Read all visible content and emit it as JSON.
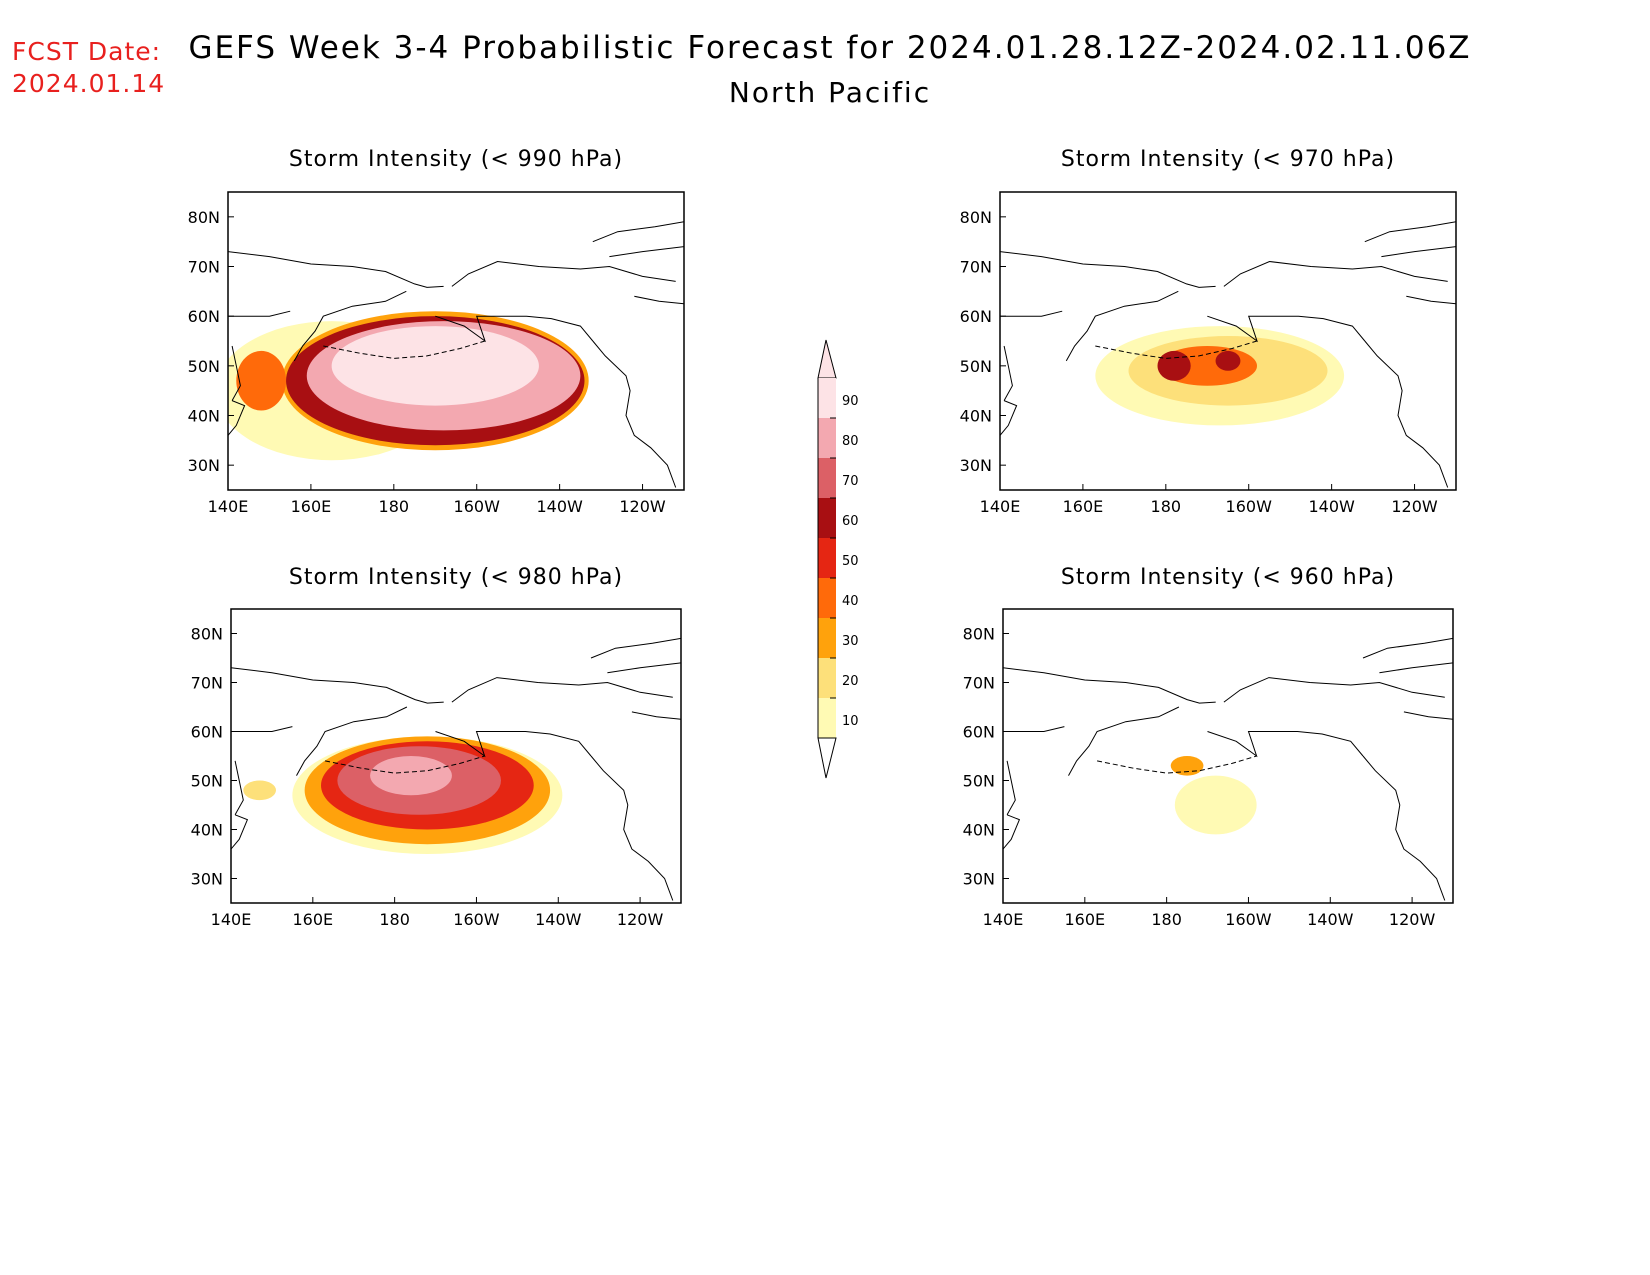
{
  "header": {
    "fcst_label": "FCST Date:",
    "fcst_date": "2024.01.14",
    "title": "GEFS Week 3-4 Probabilistic Forecast for 2024.01.28.12Z-2024.02.11.06Z",
    "subtitle": "North Pacific"
  },
  "axes": {
    "x_ticks": [
      "140E",
      "160E",
      "180",
      "160W",
      "140W",
      "120W"
    ],
    "y_ticks": [
      "80N",
      "70N",
      "60N",
      "50N",
      "40N",
      "30N"
    ],
    "lon_range_deg_east": [
      140,
      250
    ],
    "lat_range_deg_north": [
      25,
      85
    ]
  },
  "colorbar": {
    "labels": [
      "90",
      "80",
      "70",
      "60",
      "50",
      "40",
      "30",
      "20",
      "10"
    ],
    "colors": [
      "#fde3e6",
      "#f3a8b0",
      "#dc6066",
      "#a80f12",
      "#e52613",
      "#ff6a0a",
      "#ffa20c",
      "#fde07a",
      "#fffab4"
    ]
  },
  "panels": [
    {
      "id": "p990",
      "title": "Storm Intensity (< 990 hPa)"
    },
    {
      "id": "p970",
      "title": "Storm Intensity (< 970 hPa)"
    },
    {
      "id": "p980",
      "title": "Storm Intensity (< 980 hPa)"
    },
    {
      "id": "p960",
      "title": "Storm Intensity (< 960 hPa)"
    }
  ],
  "map_data": {
    "p990": [
      {
        "lon": 165,
        "lat": 45,
        "rx": 28,
        "ry": 14,
        "level": 10
      },
      {
        "lon": 190,
        "lat": 47,
        "rx": 37,
        "ry": 14,
        "level": 30
      },
      {
        "lon": 190,
        "lat": 47,
        "rx": 36,
        "ry": 13,
        "level": 60
      },
      {
        "lon": 192,
        "lat": 48,
        "rx": 33,
        "ry": 11,
        "level": 80
      },
      {
        "lon": 190,
        "lat": 50,
        "rx": 25,
        "ry": 8,
        "level": 90
      },
      {
        "lon": 148,
        "lat": 47,
        "rx": 6,
        "ry": 6,
        "level": 40
      }
    ],
    "p980": [
      {
        "lon": 188,
        "lat": 47,
        "rx": 33,
        "ry": 12,
        "level": 10
      },
      {
        "lon": 188,
        "lat": 48,
        "rx": 30,
        "ry": 11,
        "level": 30
      },
      {
        "lon": 188,
        "lat": 49,
        "rx": 26,
        "ry": 9,
        "level": 50
      },
      {
        "lon": 186,
        "lat": 50,
        "rx": 20,
        "ry": 7,
        "level": 70
      },
      {
        "lon": 184,
        "lat": 51,
        "rx": 10,
        "ry": 4,
        "level": 80
      },
      {
        "lon": 147,
        "lat": 48,
        "rx": 4,
        "ry": 2,
        "level": 20
      }
    ],
    "p970": [
      {
        "lon": 193,
        "lat": 48,
        "rx": 30,
        "ry": 10,
        "level": 10
      },
      {
        "lon": 195,
        "lat": 49,
        "rx": 24,
        "ry": 7,
        "level": 20
      },
      {
        "lon": 190,
        "lat": 50,
        "rx": 12,
        "ry": 4,
        "level": 40
      },
      {
        "lon": 182,
        "lat": 50,
        "rx": 4,
        "ry": 3,
        "level": 60
      },
      {
        "lon": 195,
        "lat": 51,
        "rx": 3,
        "ry": 2,
        "level": 60
      }
    ],
    "p960": [
      {
        "lon": 192,
        "lat": 45,
        "rx": 10,
        "ry": 6,
        "level": 10
      },
      {
        "lon": 185,
        "lat": 53,
        "rx": 4,
        "ry": 2,
        "level": 30
      }
    ]
  }
}
